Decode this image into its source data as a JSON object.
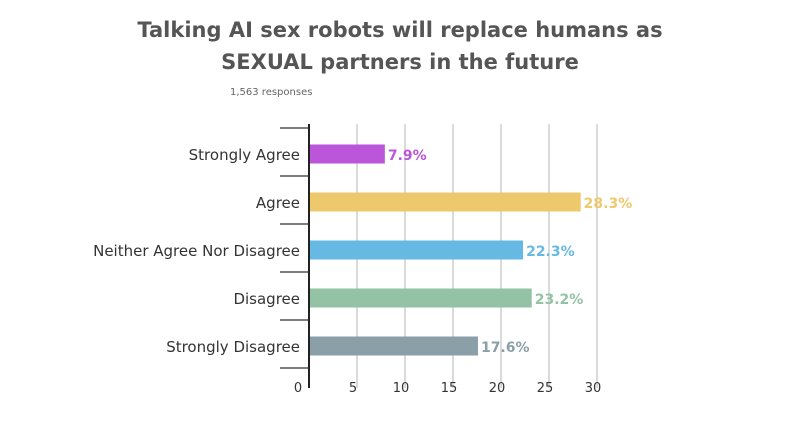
{
  "title_line1": "Talking AI sex robots will replace humans as",
  "title_line2": "SEXUAL partners in the future",
  "subtitle": "1,563 responses",
  "chart_data": {
    "type": "bar",
    "orientation": "horizontal",
    "categories": [
      "Strongly Agree",
      "Agree",
      "Neither Agree Nor Disagree",
      "Disagree",
      "Strongly Disagree"
    ],
    "values": [
      7.9,
      28.3,
      22.3,
      23.2,
      17.6
    ],
    "value_labels": [
      "7.9%",
      "28.3%",
      "22.3%",
      "23.2%",
      "17.6%"
    ],
    "colors": [
      "#bb55d9",
      "#eec96c",
      "#66b9e3",
      "#93c3a4",
      "#8a9fa8"
    ],
    "x_ticks": [
      0,
      5,
      10,
      15,
      20,
      25,
      30
    ],
    "xlim": [
      0,
      30
    ],
    "grid": "vertical",
    "legend": "none"
  }
}
